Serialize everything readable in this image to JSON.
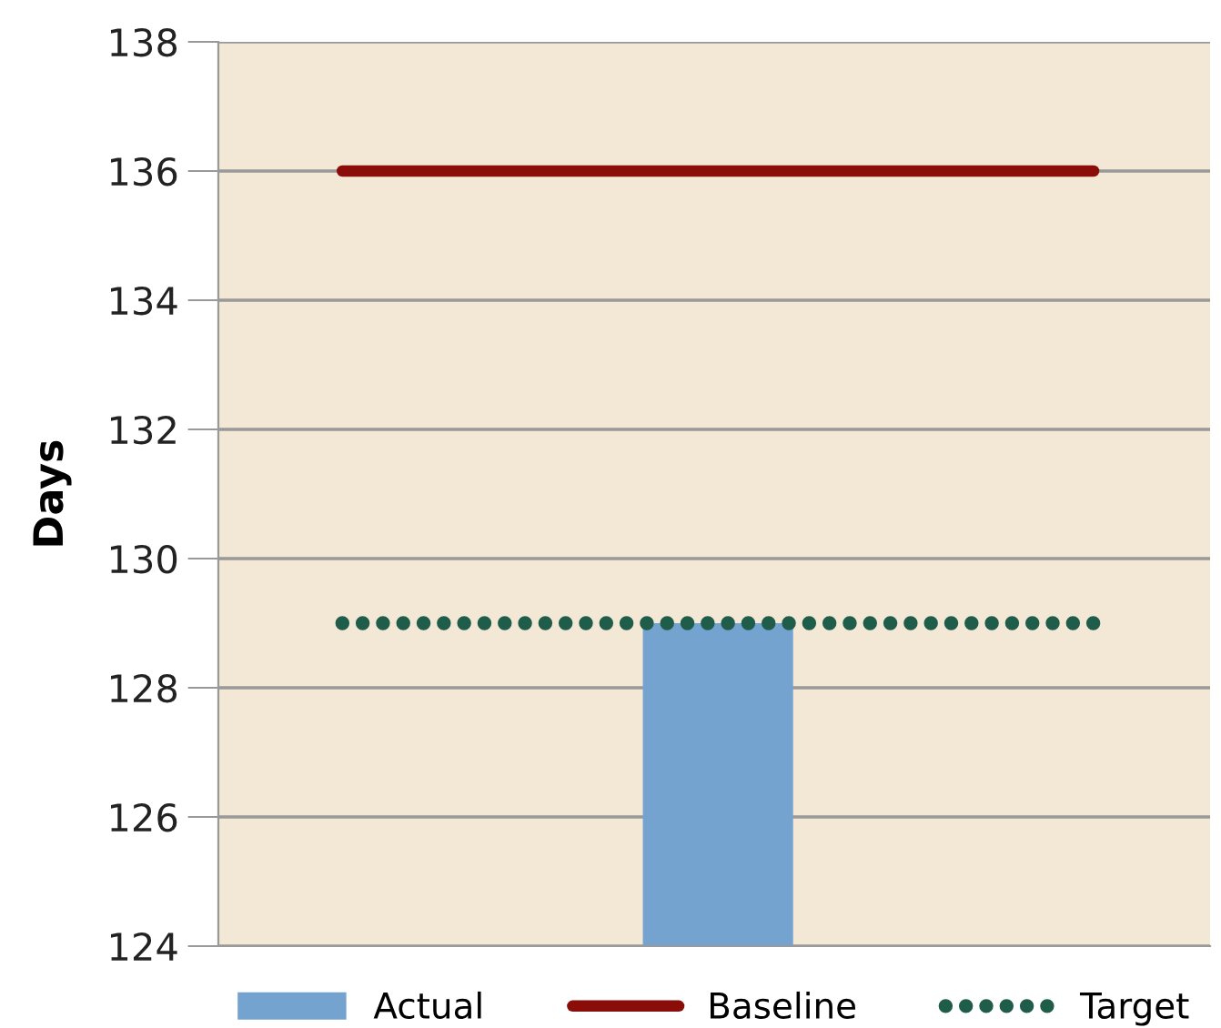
{
  "chart_data": {
    "type": "bar",
    "ylabel": "Days",
    "categories": [
      null,
      null,
      null
    ],
    "series": [
      {
        "name": "Actual",
        "color": "#74a3cf",
        "values": [
          null,
          129,
          null
        ]
      },
      {
        "name": "Baseline",
        "type": "line",
        "color": "#8b0d0a",
        "line_style": "solid",
        "values": [
          136,
          136,
          136
        ]
      },
      {
        "name": "Target",
        "type": "line",
        "color": "#1f5c4a",
        "line_style": "dotted",
        "values": [
          129,
          129,
          129
        ]
      }
    ],
    "ylim": [
      124,
      138
    ],
    "yticks": [
      124,
      126,
      128,
      130,
      132,
      134,
      136,
      138
    ],
    "grid": "y",
    "legend": "bottom"
  }
}
